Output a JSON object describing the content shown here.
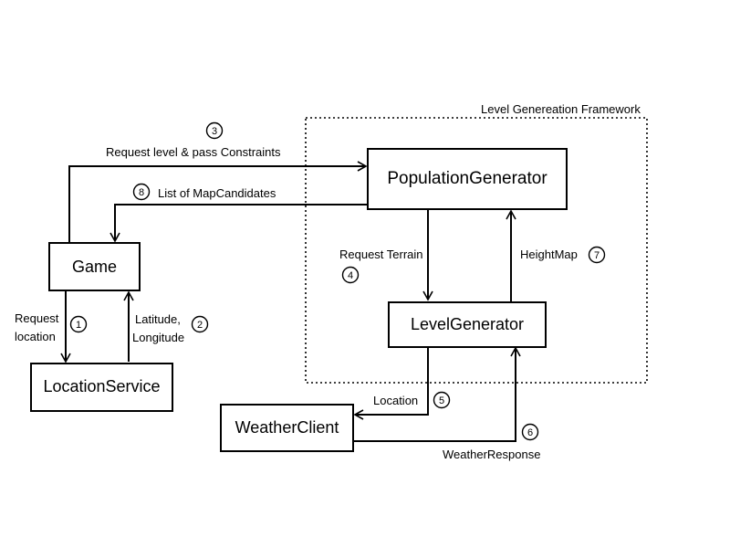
{
  "framework": {
    "title": "Level Genereation Framework"
  },
  "nodes": {
    "game": "Game",
    "location_service": "LocationService",
    "population_generator": "PopulationGenerator",
    "level_generator": "LevelGenerator",
    "weather_client": "WeatherClient"
  },
  "edges": {
    "request_level": {
      "label": "Request level & pass Constraints",
      "step": "3"
    },
    "map_candidates": {
      "label": "List of MapCandidates",
      "step": "8"
    },
    "request_location": {
      "line1": "Request",
      "line2": "location",
      "step": "1"
    },
    "lat_long": {
      "line1": "Latitude,",
      "line2": "Longitude",
      "step": "2"
    },
    "request_terrain": {
      "label": "Request Terrain",
      "step": "4"
    },
    "height_map": {
      "label": "HeightMap",
      "step": "7"
    },
    "location": {
      "label": "Location",
      "step": "5"
    },
    "weather_response": {
      "label": "WeatherResponse",
      "step": "6"
    }
  }
}
